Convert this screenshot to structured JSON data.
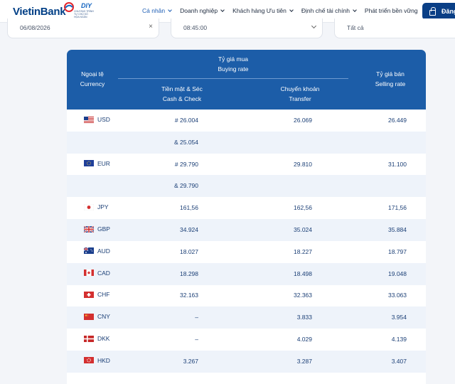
{
  "header": {
    "brand": "VietinBank",
    "badge_title": "DIY",
    "badge_text": "CHƯƠNG TRÌNH TỰ CHỦ SỐ HÓA NGÂN HÀNG",
    "nav": [
      {
        "label": "Cá nhân",
        "active": true
      },
      {
        "label": "Doanh nghiệp",
        "active": false
      },
      {
        "label": "Khách hàng Ưu tiên",
        "active": false
      },
      {
        "label": "Định chế tài chính",
        "active": false
      },
      {
        "label": "Phát triển bền vững",
        "active": false
      }
    ],
    "login_label": "Đăng",
    "brand_color": "#003f86",
    "accent_color": "#1c5da8"
  },
  "filters": {
    "date": "06/08/2026",
    "time": "08:45:00",
    "type": "Tất cả"
  },
  "table": {
    "col_currency": "Ngoại tệ",
    "col_currency_en": "Currency",
    "col_buying": "Tỷ giá mua",
    "col_buying_en": "Buying rate",
    "col_cash": "Tiền mặt & Séc",
    "col_cash_en": "Cash & Check",
    "col_transfer": "Chuyển khoản",
    "col_transfer_en": "Transfer",
    "col_selling": "Tỷ giá bán",
    "col_selling_en": "Selling rate",
    "rows": [
      {
        "code": "USD",
        "flag": "us",
        "cash": "# 26.004",
        "transfer": "26.069",
        "sell": "26.449"
      },
      {
        "code": "",
        "flag": "",
        "cash": "& 25.054",
        "transfer": "",
        "sell": ""
      },
      {
        "code": "EUR",
        "flag": "eu",
        "cash": "# 29.790",
        "transfer": "29.810",
        "sell": "31.100"
      },
      {
        "code": "",
        "flag": "",
        "cash": "& 29.790",
        "transfer": "",
        "sell": ""
      },
      {
        "code": "JPY",
        "flag": "jp",
        "cash": "161,56",
        "transfer": "162,56",
        "sell": "171,56"
      },
      {
        "code": "GBP",
        "flag": "gb",
        "cash": "34.924",
        "transfer": "35.024",
        "sell": "35.884"
      },
      {
        "code": "AUD",
        "flag": "au",
        "cash": "18.027",
        "transfer": "18.227",
        "sell": "18.797"
      },
      {
        "code": "CAD",
        "flag": "ca",
        "cash": "18.298",
        "transfer": "18.498",
        "sell": "19.048"
      },
      {
        "code": "CHF",
        "flag": "ch",
        "cash": "32.163",
        "transfer": "32.363",
        "sell": "33.063"
      },
      {
        "code": "CNY",
        "flag": "cn",
        "cash": "–",
        "transfer": "3.833",
        "sell": "3.954"
      },
      {
        "code": "DKK",
        "flag": "dk",
        "cash": "–",
        "transfer": "4.029",
        "sell": "4.139"
      },
      {
        "code": "HKD",
        "flag": "hk",
        "cash": "3.267",
        "transfer": "3.287",
        "sell": "3.407"
      }
    ]
  }
}
